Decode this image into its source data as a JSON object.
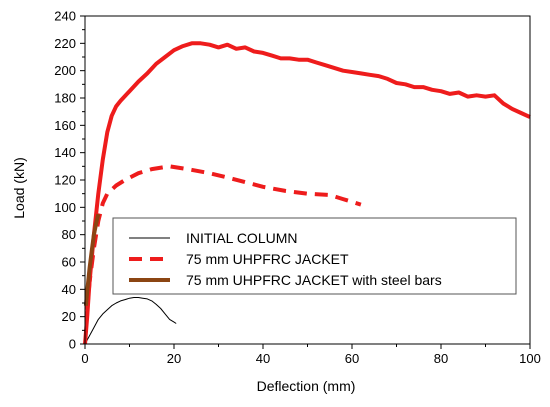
{
  "chart_data": {
    "type": "line",
    "title": "",
    "xlabel": "Deflection (mm)",
    "ylabel": "Load (kN)",
    "xlim": [
      0,
      100
    ],
    "ylim": [
      0,
      240
    ],
    "xticks": [
      0,
      20,
      40,
      60,
      80,
      100
    ],
    "yticks": [
      0,
      20,
      40,
      60,
      80,
      100,
      120,
      140,
      160,
      180,
      200,
      220,
      240
    ],
    "grid": false,
    "legend_position": "lower-middle",
    "series": [
      {
        "name": "INITIAL COLUMN",
        "color": "#000000",
        "style": "solid-thin",
        "points": [
          [
            0,
            0
          ],
          [
            1,
            6
          ],
          [
            2,
            12
          ],
          [
            3,
            18
          ],
          [
            4,
            22
          ],
          [
            5,
            25
          ],
          [
            6,
            28
          ],
          [
            7,
            30
          ],
          [
            8,
            31.5
          ],
          [
            9,
            32.5
          ],
          [
            10,
            33.5
          ],
          [
            11,
            34
          ],
          [
            12,
            34
          ],
          [
            13,
            33.5
          ],
          [
            14,
            33
          ],
          [
            15,
            31.5
          ],
          [
            16,
            29
          ],
          [
            17,
            26
          ],
          [
            18,
            22
          ],
          [
            19,
            18
          ],
          [
            20,
            16
          ],
          [
            20.5,
            15
          ]
        ]
      },
      {
        "name": "75 mm UHPFRC JACKET",
        "color": "#ee1c1c",
        "style": "dashed",
        "points": [
          [
            0.5,
            25
          ],
          [
            1,
            45
          ],
          [
            2,
            70
          ],
          [
            3,
            90
          ],
          [
            4,
            103
          ],
          [
            5,
            110
          ],
          [
            7,
            116
          ],
          [
            9,
            120
          ],
          [
            12,
            125
          ],
          [
            15,
            128
          ],
          [
            19,
            130
          ],
          [
            23,
            128
          ],
          [
            28,
            125
          ],
          [
            33,
            121
          ],
          [
            40,
            115
          ],
          [
            45,
            112
          ],
          [
            50,
            110
          ],
          [
            55,
            109
          ],
          [
            58,
            106
          ],
          [
            62,
            102
          ]
        ]
      },
      {
        "name": "75 mm UHPFRC JACKET with steel bars",
        "color": "#8b4513",
        "style": "solid-thick",
        "points": [
          [
            0.2,
            28
          ],
          [
            0.6,
            42
          ],
          [
            1,
            55
          ],
          [
            1.5,
            68
          ],
          [
            2,
            80
          ],
          [
            2.5,
            88
          ],
          [
            3,
            95
          ]
        ]
      },
      {
        "name": "",
        "color": "#ee1c1c",
        "style": "solid-thick",
        "points": [
          [
            0,
            0
          ],
          [
            0.5,
            20
          ],
          [
            1,
            45
          ],
          [
            2,
            80
          ],
          [
            3,
            110
          ],
          [
            4,
            135
          ],
          [
            5,
            155
          ],
          [
            6,
            167
          ],
          [
            7,
            174
          ],
          [
            8,
            178
          ],
          [
            10,
            185
          ],
          [
            12,
            192
          ],
          [
            14,
            198
          ],
          [
            16,
            205
          ],
          [
            18,
            210
          ],
          [
            20,
            215
          ],
          [
            22,
            218
          ],
          [
            24,
            220
          ],
          [
            26,
            220
          ],
          [
            28,
            219
          ],
          [
            30,
            217
          ],
          [
            32,
            219
          ],
          [
            34,
            216
          ],
          [
            36,
            217
          ],
          [
            38,
            214
          ],
          [
            40,
            213
          ],
          [
            42,
            211
          ],
          [
            44,
            209
          ],
          [
            46,
            209
          ],
          [
            48,
            208
          ],
          [
            50,
            208
          ],
          [
            52,
            206
          ],
          [
            54,
            204
          ],
          [
            56,
            202
          ],
          [
            58,
            200
          ],
          [
            60,
            199
          ],
          [
            62,
            198
          ],
          [
            64,
            197
          ],
          [
            66,
            196
          ],
          [
            68,
            194
          ],
          [
            70,
            191
          ],
          [
            72,
            190
          ],
          [
            74,
            188
          ],
          [
            76,
            188
          ],
          [
            78,
            186
          ],
          [
            80,
            185
          ],
          [
            82,
            183
          ],
          [
            84,
            184
          ],
          [
            86,
            181
          ],
          [
            88,
            182
          ],
          [
            90,
            181
          ],
          [
            92,
            182
          ],
          [
            94,
            176
          ],
          [
            96,
            172
          ],
          [
            98,
            169
          ],
          [
            100,
            166
          ]
        ]
      }
    ]
  }
}
